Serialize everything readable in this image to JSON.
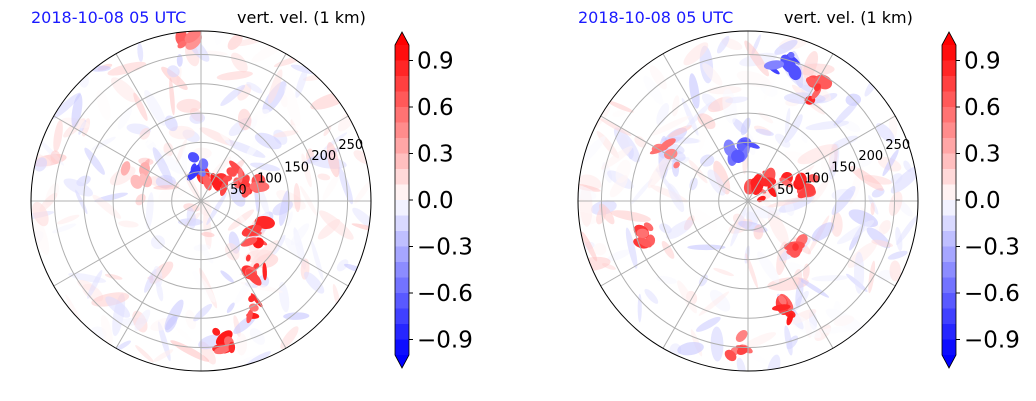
{
  "chart_data": [
    {
      "type": "heatmap",
      "projection": "polar",
      "title_left": "2018-10-08 05 UTC",
      "title_right": "vert. vel. (1 km)",
      "radial_ticks": [
        "50",
        "100",
        "150",
        "200",
        "250"
      ],
      "radial_tick_values": [
        50,
        100,
        150,
        200,
        250
      ],
      "r_max": 290,
      "colorbar": {
        "ticks": [
          "0.9",
          "0.6",
          "0.3",
          "0.0",
          "−0.3",
          "−0.6",
          "−0.9"
        ],
        "tick_values": [
          0.9,
          0.6,
          0.3,
          0.0,
          -0.3,
          -0.6,
          -0.9
        ],
        "range": [
          -1.0,
          1.0
        ],
        "colormap": "bwr",
        "extend": "both"
      },
      "colors": {
        "positive": "#ff0000",
        "negative": "#0000ff",
        "zero": "#ffffff"
      },
      "features": [
        {
          "r": 40,
          "theta": 60,
          "value": 0.9
        },
        {
          "r": 70,
          "theta": 35,
          "value": 0.9
        },
        {
          "r": 90,
          "theta": 20,
          "value": 0.8
        },
        {
          "r": 60,
          "theta": 95,
          "value": -0.8
        },
        {
          "r": 110,
          "theta": -30,
          "value": 0.9
        },
        {
          "r": 150,
          "theta": -50,
          "value": 0.9
        },
        {
          "r": 200,
          "theta": -65,
          "value": 0.9
        },
        {
          "r": 240,
          "theta": -80,
          "value": 0.9
        },
        {
          "r": 280,
          "theta": 95,
          "value": 0.7
        },
        {
          "r": 120,
          "theta": 160,
          "value": 0.4
        }
      ]
    },
    {
      "type": "heatmap",
      "projection": "polar",
      "title_left": "2018-10-08 05 UTC",
      "title_right": "vert. vel. (1 km)",
      "radial_ticks": [
        "50",
        "100",
        "150",
        "200",
        "250"
      ],
      "radial_tick_values": [
        50,
        100,
        150,
        200,
        250
      ],
      "r_max": 290,
      "colorbar": {
        "ticks": [
          "0.9",
          "0.6",
          "0.3",
          "0.0",
          "−0.3",
          "−0.6",
          "−0.9"
        ],
        "tick_values": [
          0.9,
          0.6,
          0.3,
          0.0,
          -0.3,
          -0.6,
          -0.9
        ],
        "range": [
          -1.0,
          1.0
        ],
        "colormap": "bwr",
        "extend": "both"
      },
      "colors": {
        "positive": "#ff0000",
        "negative": "#0000ff",
        "zero": "#ffffff"
      },
      "features": [
        {
          "r": 30,
          "theta": 45,
          "value": 0.9
        },
        {
          "r": 60,
          "theta": 30,
          "value": 0.9
        },
        {
          "r": 100,
          "theta": 15,
          "value": 0.9
        },
        {
          "r": 220,
          "theta": 60,
          "value": 0.9
        },
        {
          "r": 240,
          "theta": 75,
          "value": -0.8
        },
        {
          "r": 120,
          "theta": -40,
          "value": 0.9
        },
        {
          "r": 200,
          "theta": -70,
          "value": 0.9
        },
        {
          "r": 250,
          "theta": -95,
          "value": 0.8
        },
        {
          "r": 180,
          "theta": 200,
          "value": 0.8
        },
        {
          "r": 160,
          "theta": 150,
          "value": 0.7
        },
        {
          "r": 80,
          "theta": 100,
          "value": -0.7
        }
      ]
    }
  ]
}
